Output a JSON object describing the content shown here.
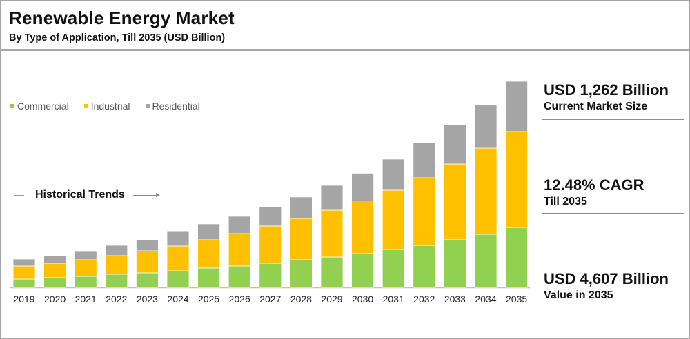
{
  "header": {
    "title": "Renewable Energy Market",
    "subtitle": "By Type of Application, Till 2035 (USD Billion)"
  },
  "annotation": {
    "historical_label": "Historical Trends"
  },
  "stats": [
    {
      "value": "USD 1,262 Billion",
      "label": "Current Market Size"
    },
    {
      "value": "12.48% CAGR",
      "label": "Till 2035"
    },
    {
      "value": "USD 4,607 Billion",
      "label": "Value in 2035"
    }
  ],
  "colors": {
    "Commercial": "#92d050",
    "Industrial": "#ffc000",
    "Residential": "#a5a5a5",
    "axis": "#bfbfbf",
    "tick_text": "#262626"
  },
  "chart_data": {
    "type": "bar",
    "stacked": true,
    "title": "Renewable Energy Market",
    "subtitle": "By Type of Application, Till 2035 (USD Billion)",
    "xlabel": "",
    "ylabel": "USD Billion",
    "ylim": [
      0,
      4607
    ],
    "grid": false,
    "legend_position": "top-left",
    "categories": [
      "2019",
      "2020",
      "2021",
      "2022",
      "2023",
      "2024",
      "2025",
      "2026",
      "2027",
      "2028",
      "2029",
      "2030",
      "2031",
      "2032",
      "2033",
      "2034",
      "2035"
    ],
    "series": [
      {
        "name": "Commercial",
        "values": [
          185,
          216,
          247,
          293,
          324,
          370,
          432,
          478,
          540,
          617,
          678,
          755,
          848,
          940,
          1063,
          1186,
          1340
        ]
      },
      {
        "name": "Industrial",
        "values": [
          293,
          324,
          370,
          416,
          493,
          555,
          632,
          724,
          832,
          925,
          1048,
          1180,
          1325,
          1510,
          1695,
          1926,
          2143
        ]
      },
      {
        "name": "Residential",
        "values": [
          154,
          169,
          185,
          231,
          247,
          337,
          355,
          386,
          431,
          478,
          555,
          617,
          694,
          786,
          878,
          971,
          1124
        ]
      }
    ],
    "totals": [
      632,
      709,
      802,
      940,
      1064,
      1262,
      1419,
      1588,
      1803,
      2020,
      2281,
      2552,
      2867,
      3236,
      3636,
      4083,
      4607
    ]
  }
}
